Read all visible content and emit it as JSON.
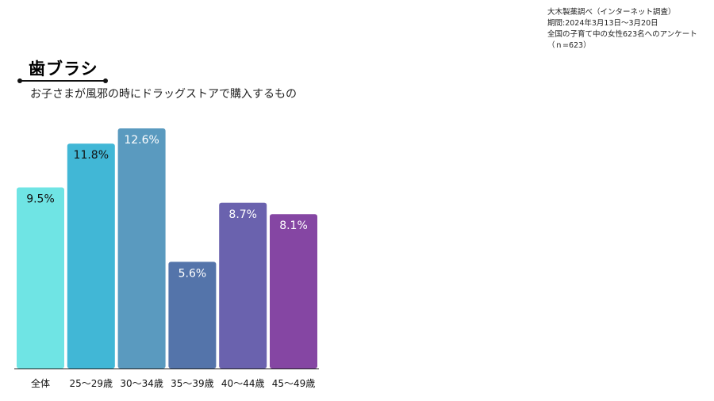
{
  "source": {
    "line1": "大木製薬調べ（インターネット調査）",
    "line2": "期間:2024年3月13日〜3月20日",
    "line3": "全国の子育て中の女性623名へのアンケート",
    "line4": "（ｎ=623）"
  },
  "chart_data": {
    "type": "bar",
    "title": "歯ブラシ",
    "subtitle": "お子さまが風邪の時にドラッグストアで購入するもの",
    "categories": [
      "全体",
      "25〜29歳",
      "30〜34歳",
      "35〜39歳",
      "40〜44歳",
      "45〜49歳"
    ],
    "values": [
      9.5,
      11.8,
      12.6,
      5.6,
      8.7,
      8.1
    ],
    "data_labels": [
      "9.5%",
      "11.8%",
      "12.6%",
      "5.6%",
      "8.7%",
      "8.1%"
    ],
    "colors": [
      "#6fe4e4",
      "#41b7d6",
      "#5a9abf",
      "#5474aa",
      "#6a62ae",
      "#8546a3"
    ],
    "label_colors": [
      "#111111",
      "#111111",
      "#ffffff",
      "#ffffff",
      "#ffffff",
      "#ffffff"
    ],
    "baseline_color": "#222222",
    "ylim": [
      0,
      12.6
    ],
    "grid": false,
    "legend": "none"
  }
}
